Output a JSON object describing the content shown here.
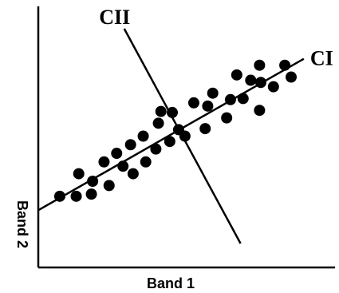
{
  "chart_data": {
    "type": "scatter",
    "title": "",
    "xlabel": "Band 1",
    "ylabel": "Band 2",
    "grid": false,
    "xlim": [
      0,
      10
    ],
    "ylim": [
      0,
      10
    ],
    "points": [
      {
        "x": 0.85,
        "y": 2.2
      },
      {
        "x": 1.5,
        "y": 2.2
      },
      {
        "x": 1.6,
        "y": 3.25
      },
      {
        "x": 2.15,
        "y": 2.9
      },
      {
        "x": 2.1,
        "y": 2.3
      },
      {
        "x": 2.6,
        "y": 3.8
      },
      {
        "x": 2.8,
        "y": 2.7
      },
      {
        "x": 3.1,
        "y": 4.2
      },
      {
        "x": 3.35,
        "y": 3.6
      },
      {
        "x": 3.65,
        "y": 4.6
      },
      {
        "x": 3.75,
        "y": 3.25
      },
      {
        "x": 4.15,
        "y": 5.0
      },
      {
        "x": 4.25,
        "y": 3.8
      },
      {
        "x": 4.65,
        "y": 4.4
      },
      {
        "x": 4.75,
        "y": 5.6
      },
      {
        "x": 4.85,
        "y": 6.15
      },
      {
        "x": 5.2,
        "y": 4.75
      },
      {
        "x": 5.3,
        "y": 6.1
      },
      {
        "x": 5.55,
        "y": 5.3
      },
      {
        "x": 5.8,
        "y": 5.0
      },
      {
        "x": 6.15,
        "y": 6.55
      },
      {
        "x": 6.6,
        "y": 5.35
      },
      {
        "x": 6.7,
        "y": 6.4
      },
      {
        "x": 6.9,
        "y": 7.0
      },
      {
        "x": 7.45,
        "y": 5.85
      },
      {
        "x": 7.6,
        "y": 6.7
      },
      {
        "x": 7.85,
        "y": 7.85
      },
      {
        "x": 8.1,
        "y": 6.75
      },
      {
        "x": 8.4,
        "y": 7.6
      },
      {
        "x": 8.75,
        "y": 8.3
      },
      {
        "x": 8.8,
        "y": 7.5
      },
      {
        "x": 8.75,
        "y": 6.2
      },
      {
        "x": 9.3,
        "y": 7.3
      },
      {
        "x": 9.75,
        "y": 8.3
      },
      {
        "x": 10.0,
        "y": 7.75
      }
    ],
    "lines": [
      {
        "label": "CI",
        "from": {
          "x": 0.0,
          "y": 1.55
        },
        "to": {
          "x": 10.5,
          "y": 8.6
        }
      },
      {
        "label": "CII",
        "from": {
          "x": 3.4,
          "y": 10.0
        },
        "to": {
          "x": 8.0,
          "y": 0.0
        }
      }
    ]
  }
}
